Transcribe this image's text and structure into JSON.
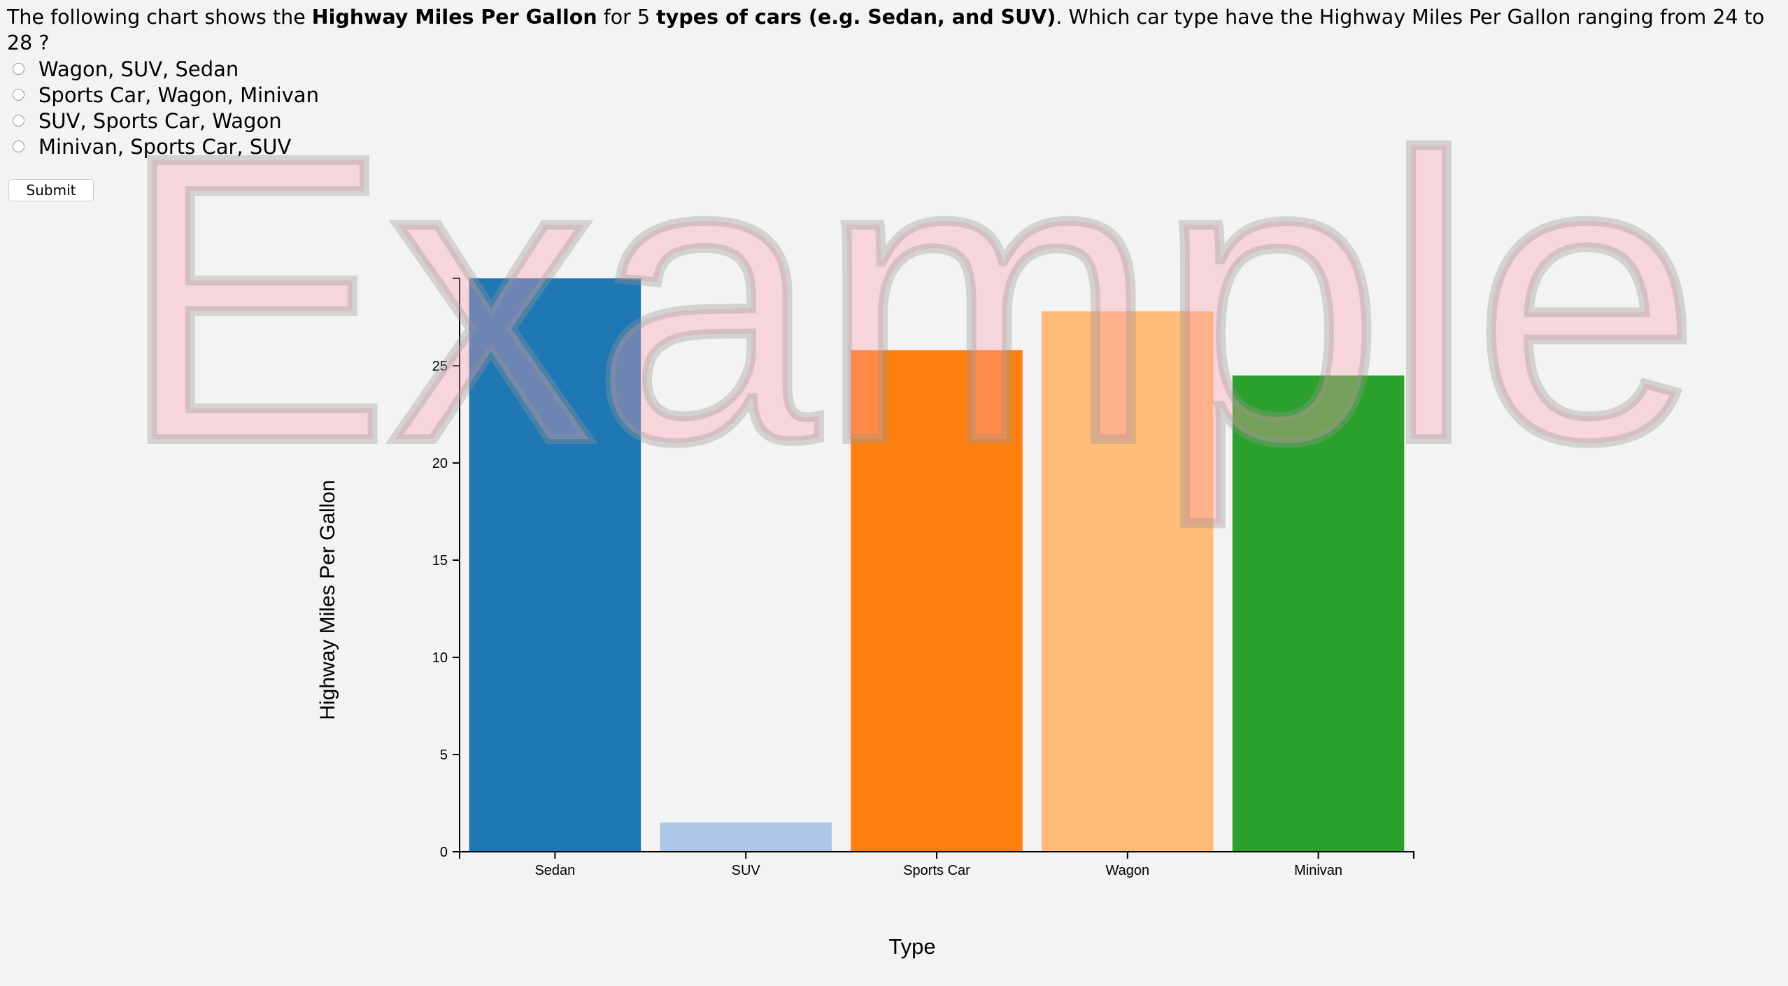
{
  "question": {
    "prefix": "The following chart shows the ",
    "measure": "Highway Miles Per Gallon",
    "middle": " for 5 ",
    "entity": "types of cars (e.g. Sedan, and SUV)",
    "suffix": ". Which car type have the Highway Miles Per Gallon ranging from 24 to 28 ?"
  },
  "options": [
    {
      "label": "Wagon, SUV, Sedan"
    },
    {
      "label": "Sports Car, Wagon, Minivan"
    },
    {
      "label": "SUV, Sports Car, Wagon"
    },
    {
      "label": "Minivan, Sports Car, SUV"
    }
  ],
  "submit_label": "Submit",
  "watermark": "Example",
  "chart_data": {
    "type": "bar",
    "categories": [
      "Sedan",
      "SUV",
      "Sports Car",
      "Wagon",
      "Minivan"
    ],
    "values": [
      29.5,
      1.5,
      25.8,
      27.8,
      24.5
    ],
    "colors": [
      "#1f77b4",
      "#aec7e8",
      "#ff7f0e",
      "#ffbb78",
      "#2ca02c"
    ],
    "xlabel": "Type",
    "ylabel": "Highway Miles Per Gallon",
    "yticks": [
      0,
      5,
      10,
      15,
      20,
      25
    ],
    "ylim": [
      0,
      29.5
    ],
    "grid": false,
    "legend": "none"
  }
}
